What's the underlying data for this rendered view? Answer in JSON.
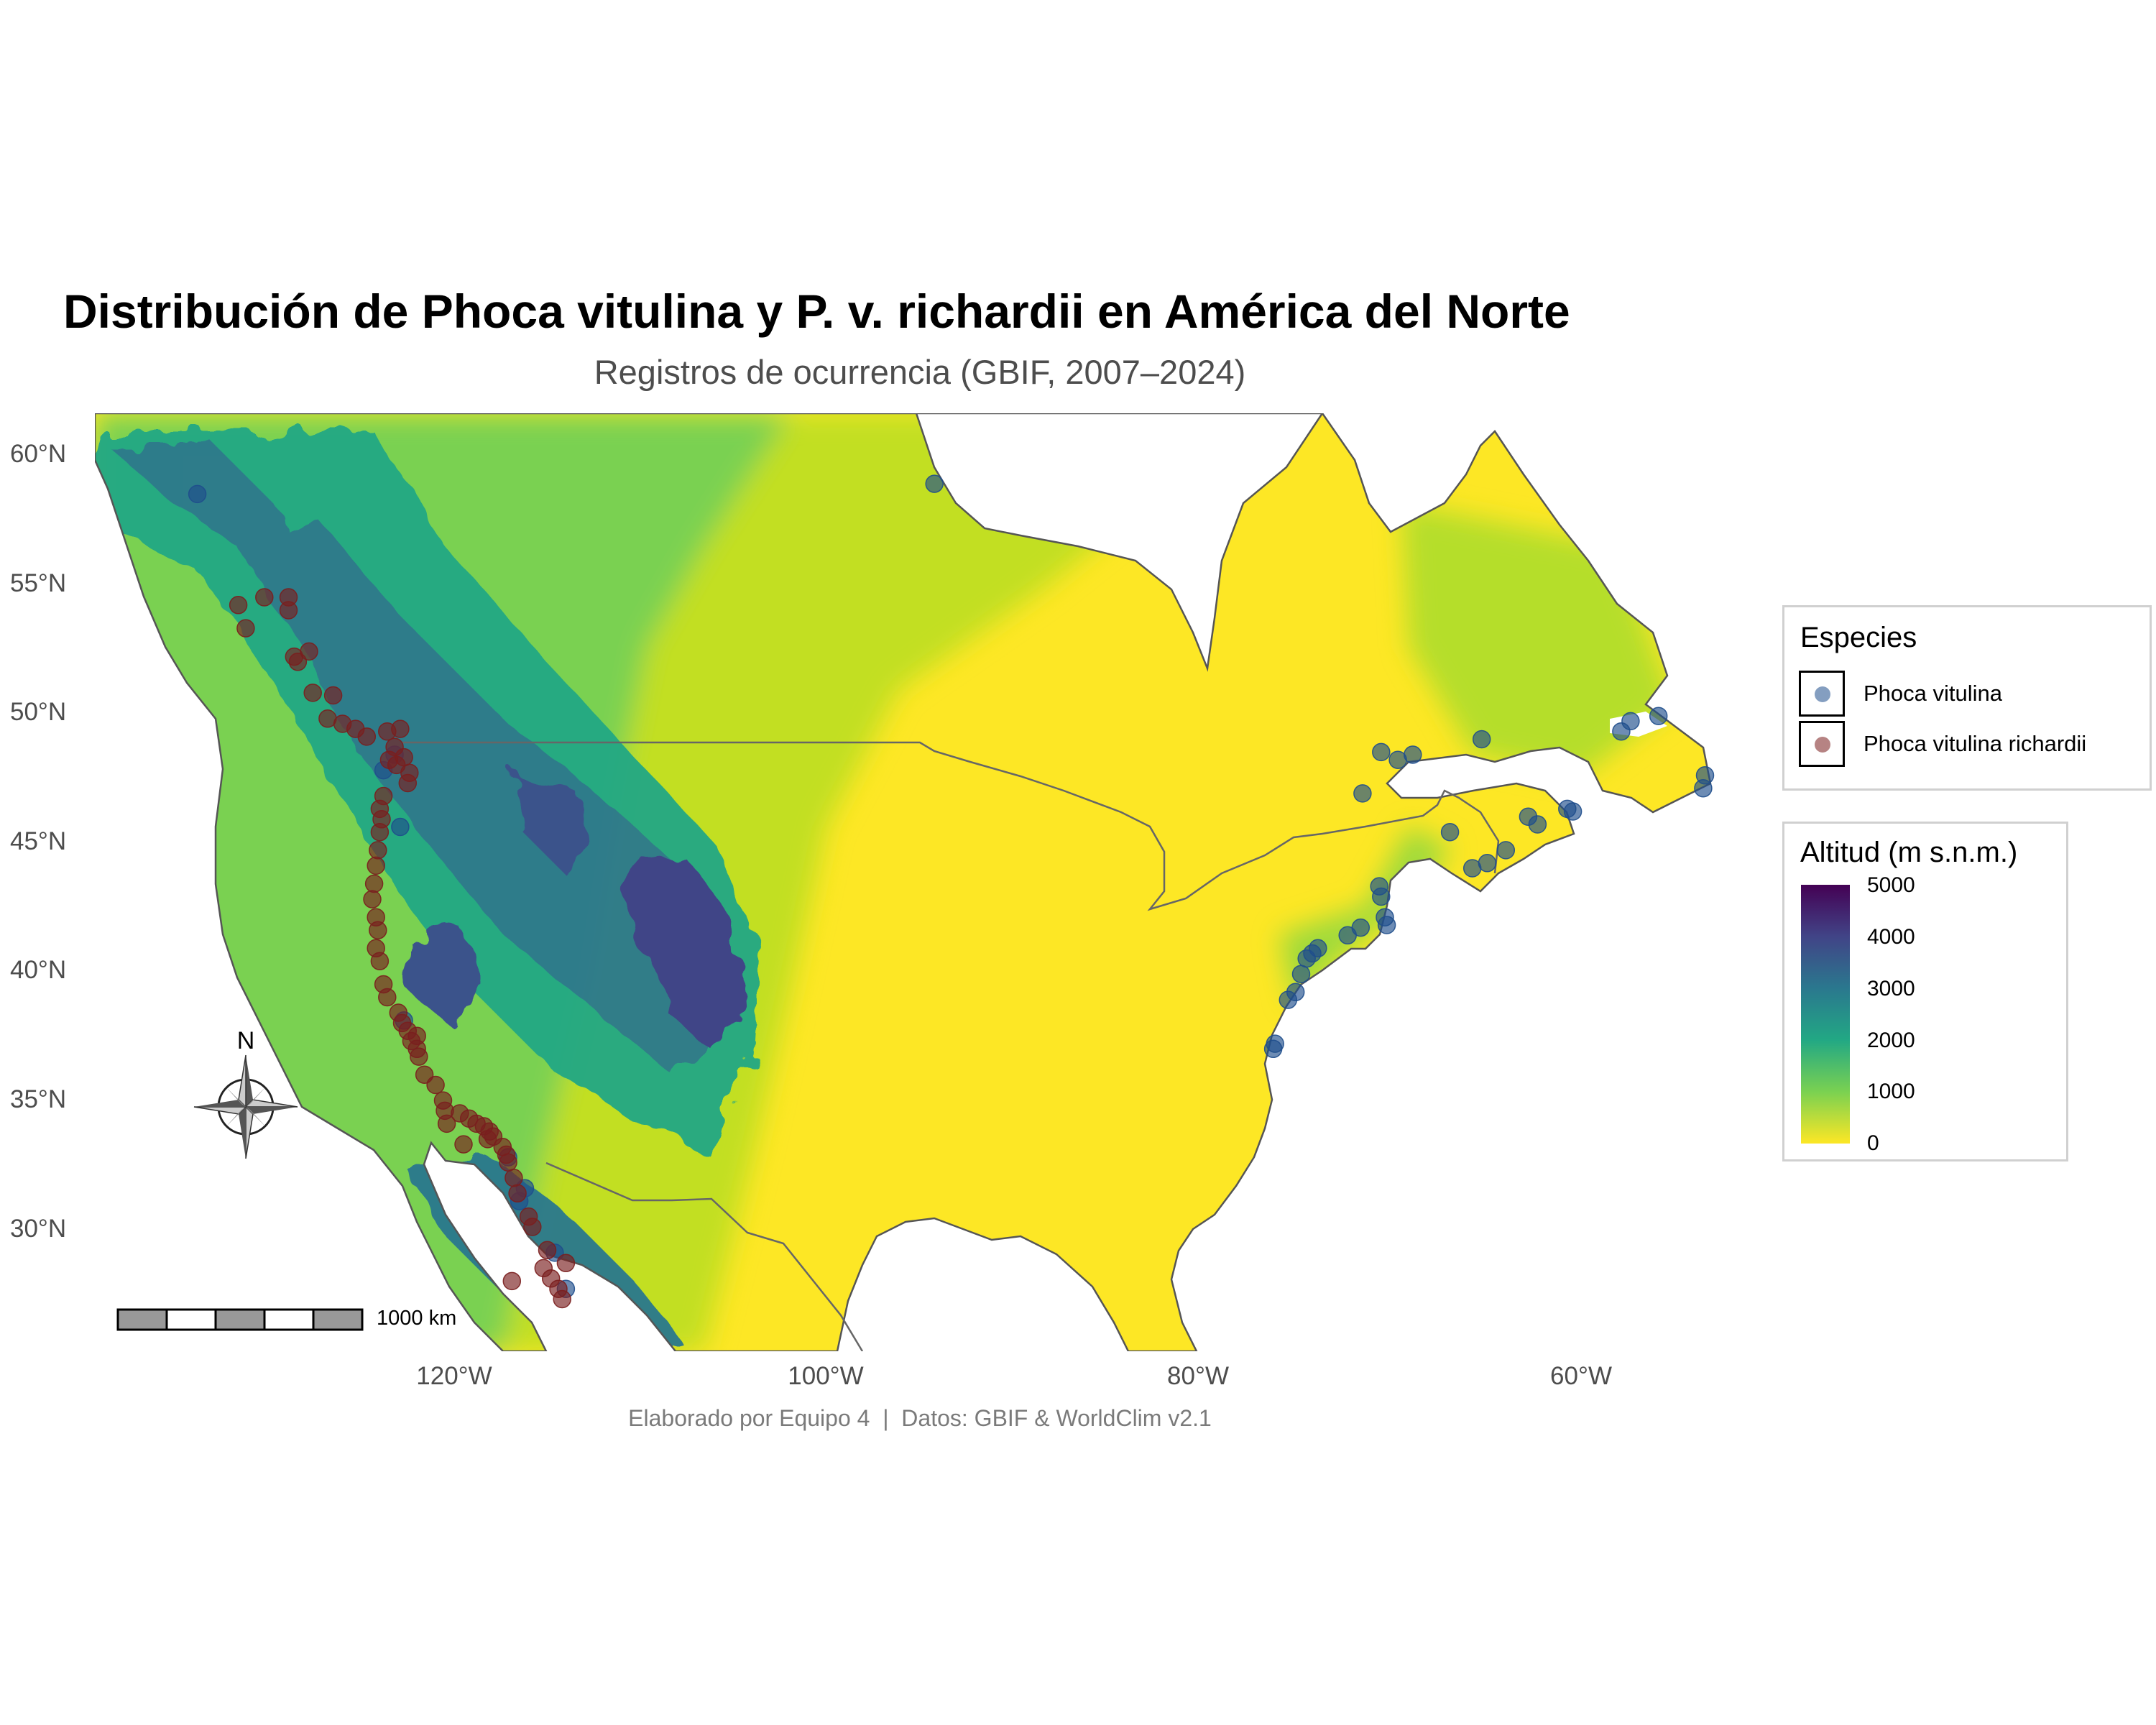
{
  "title": "Distribución de Phoca vitulina y P. v. richardii en América del Norte",
  "subtitle": "Registros de ocurrencia (GBIF, 2007–2024)",
  "caption": "Elaborado por Equipo 4  |  Datos: GBIF & WorldClim v2.1",
  "axes": {
    "y_ticks": [
      "60°N",
      "55°N",
      "50°N",
      "45°N",
      "40°N",
      "35°N",
      "30°N"
    ],
    "x_ticks": [
      "120°W",
      "100°W",
      "80°W",
      "60°W"
    ]
  },
  "legend_species": {
    "title": "Especies",
    "items": [
      {
        "label": "Phoca vitulina",
        "color": "#1f4e8c"
      },
      {
        "label": "Phoca vitulina richardii",
        "color": "#7a1e1e"
      }
    ]
  },
  "legend_elevation": {
    "title": "Altitud (m s.n.m.)",
    "ticks": [
      "5000",
      "4000",
      "3000",
      "2000",
      "1000",
      "0"
    ],
    "palette": "viridis"
  },
  "scale_bar": {
    "label": "1000 km"
  },
  "north_arrow": {
    "label": "N"
  },
  "colors": {
    "lowland": "#fde725",
    "plains": "#c2df23",
    "foothills": "#7ad151",
    "mountains_mid": "#22a884",
    "mountains_high": "#2a788e",
    "peaks": "#414487",
    "border_lines": "#666666",
    "p_vitulina": "#1f4e8c",
    "p_richardii": "#7a1e1e"
  },
  "chart_data": {
    "type": "scatter",
    "xlim": [
      -140,
      -52
    ],
    "ylim": [
      25.5,
      61.5
    ],
    "series": [
      {
        "name": "Phoca vitulina",
        "points": [
          [
            -94.2,
            58.8
          ],
          [
            -133.8,
            58.4
          ],
          [
            -70.2,
            48.4
          ],
          [
            -69.3,
            48.1
          ],
          [
            -68.5,
            48.3
          ],
          [
            -71.2,
            46.8
          ],
          [
            -64.8,
            48.9
          ],
          [
            -66.5,
            45.3
          ],
          [
            -63.5,
            44.6
          ],
          [
            -62.3,
            45.9
          ],
          [
            -61.8,
            45.6
          ],
          [
            -60.2,
            46.2
          ],
          [
            -59.9,
            46.1
          ],
          [
            -65.3,
            43.9
          ],
          [
            -64.5,
            44.1
          ],
          [
            -56.8,
            49.6
          ],
          [
            -55.3,
            49.8
          ],
          [
            -57.3,
            49.2
          ],
          [
            -52.8,
            47.5
          ],
          [
            -52.9,
            47.0
          ],
          [
            -70.3,
            43.2
          ],
          [
            -70.2,
            42.8
          ],
          [
            -70.0,
            42.0
          ],
          [
            -69.9,
            41.7
          ],
          [
            -71.3,
            41.6
          ],
          [
            -72.0,
            41.3
          ],
          [
            -73.6,
            40.8
          ],
          [
            -73.9,
            40.6
          ],
          [
            -74.2,
            40.4
          ],
          [
            -74.5,
            39.8
          ],
          [
            -74.8,
            39.1
          ],
          [
            -75.2,
            38.8
          ],
          [
            -75.9,
            37.1
          ],
          [
            -76.0,
            36.9
          ],
          [
            -117.1,
            32.7
          ],
          [
            -116.5,
            31.0
          ],
          [
            -114.6,
            29.0
          ],
          [
            -114.0,
            27.6
          ],
          [
            -116.2,
            31.5
          ],
          [
            -122.7,
            38.0
          ],
          [
            -122.9,
            45.5
          ],
          [
            -123.8,
            47.7
          ],
          [
            -123.2,
            48.3
          ]
        ]
      },
      {
        "name": "Phoca vitulina richardii",
        "points": [
          [
            -131.6,
            54.1
          ],
          [
            -131.2,
            53.2
          ],
          [
            -130.2,
            54.4
          ],
          [
            -128.9,
            54.4
          ],
          [
            -128.9,
            53.9
          ],
          [
            -128.6,
            52.1
          ],
          [
            -127.8,
            52.3
          ],
          [
            -128.4,
            51.9
          ],
          [
            -127.6,
            50.7
          ],
          [
            -126.5,
            50.6
          ],
          [
            -126.0,
            49.5
          ],
          [
            -126.8,
            49.7
          ],
          [
            -125.3,
            49.3
          ],
          [
            -124.7,
            49.0
          ],
          [
            -123.6,
            49.2
          ],
          [
            -122.9,
            49.3
          ],
          [
            -123.2,
            48.6
          ],
          [
            -122.7,
            48.2
          ],
          [
            -123.5,
            48.1
          ],
          [
            -122.4,
            47.6
          ],
          [
            -122.5,
            47.2
          ],
          [
            -123.8,
            46.7
          ],
          [
            -124.0,
            46.2
          ],
          [
            -123.9,
            45.8
          ],
          [
            -124.0,
            45.3
          ],
          [
            -124.1,
            44.6
          ],
          [
            -124.2,
            44.0
          ],
          [
            -124.3,
            43.3
          ],
          [
            -124.4,
            42.7
          ],
          [
            -124.2,
            42.0
          ],
          [
            -124.1,
            41.5
          ],
          [
            -124.2,
            40.8
          ],
          [
            -124.0,
            40.3
          ],
          [
            -123.8,
            39.4
          ],
          [
            -123.6,
            38.9
          ],
          [
            -123.0,
            38.3
          ],
          [
            -122.8,
            37.9
          ],
          [
            -122.5,
            37.6
          ],
          [
            -122.3,
            37.2
          ],
          [
            -122.0,
            36.9
          ],
          [
            -121.9,
            36.6
          ],
          [
            -121.6,
            35.9
          ],
          [
            -121.0,
            35.5
          ],
          [
            -120.6,
            34.9
          ],
          [
            -120.5,
            34.5
          ],
          [
            -119.7,
            34.4
          ],
          [
            -119.2,
            34.2
          ],
          [
            -118.8,
            34.0
          ],
          [
            -118.4,
            33.9
          ],
          [
            -118.1,
            33.7
          ],
          [
            -117.9,
            33.5
          ],
          [
            -117.4,
            33.1
          ],
          [
            -117.2,
            32.8
          ],
          [
            -117.1,
            32.5
          ],
          [
            -116.8,
            31.9
          ],
          [
            -116.6,
            31.3
          ],
          [
            -116.0,
            30.4
          ],
          [
            -115.8,
            30.0
          ],
          [
            -115.2,
            28.4
          ],
          [
            -114.8,
            28.0
          ],
          [
            -114.4,
            27.6
          ],
          [
            -114.2,
            27.2
          ],
          [
            -118.2,
            33.4
          ],
          [
            -119.5,
            33.2
          ],
          [
            -120.4,
            34.0
          ],
          [
            -116.9,
            27.9
          ],
          [
            -115.0,
            29.1
          ],
          [
            -114.0,
            28.6
          ],
          [
            -122.0,
            37.4
          ],
          [
            -123.1,
            47.9
          ]
        ]
      }
    ]
  }
}
